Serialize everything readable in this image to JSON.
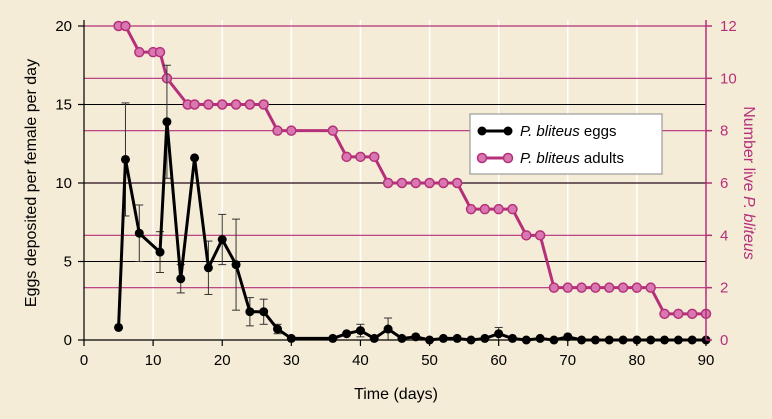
{
  "colors": {
    "background": "#f5ecd7",
    "eggs": "#000000",
    "adults": "#b5307a",
    "adults_marker": "#d877b0",
    "grid_vertical": "#ffffff",
    "grid_horizontal_left": "#000000",
    "grid_horizontal_right": "#b5307a"
  },
  "chart_data": {
    "type": "line",
    "xlabel": "Time (days)",
    "ylabel": "Eggs deposited per female per day",
    "y2label_prefix": "Number live ",
    "y2label_italic": "P. bliteus",
    "xlim": [
      0,
      90
    ],
    "ylim": [
      0,
      20
    ],
    "y2lim": [
      0,
      12
    ],
    "x_ticks": [
      0,
      10,
      20,
      30,
      40,
      50,
      60,
      70,
      80,
      90
    ],
    "y_ticks": [
      0,
      5,
      10,
      15,
      20
    ],
    "y2_ticks": [
      0,
      2,
      4,
      6,
      8,
      10,
      12
    ],
    "grid": true,
    "legend_position": "right-center",
    "series": [
      {
        "name_italic": "P. bliteus",
        "name_suffix": " eggs",
        "axis": "left",
        "marker": "circle-filled-black",
        "x": [
          5,
          6,
          8,
          11,
          12,
          14,
          16,
          18,
          20,
          22,
          24,
          26,
          28,
          30,
          36,
          38,
          40,
          42,
          44,
          46,
          48,
          50,
          52,
          54,
          56,
          58,
          60,
          62,
          64,
          66,
          68,
          70,
          72,
          74,
          76,
          78,
          80,
          82,
          84,
          86,
          88,
          90
        ],
        "values": [
          0.8,
          11.5,
          6.8,
          5.6,
          13.9,
          3.9,
          11.6,
          4.6,
          6.4,
          4.8,
          1.8,
          1.8,
          0.7,
          0.1,
          0.1,
          0.4,
          0.6,
          0.1,
          0.7,
          0.1,
          0.2,
          0.0,
          0.1,
          0.1,
          0.0,
          0.1,
          0.4,
          0.1,
          0.0,
          0.1,
          0.0,
          0.2,
          0.0,
          0.0,
          0.0,
          0.0,
          0.0,
          0.0,
          0.0,
          0.0,
          0.0,
          0.0
        ],
        "error": [
          0,
          3.6,
          1.8,
          1.3,
          3.6,
          0.9,
          0,
          1.7,
          1.6,
          2.9,
          0.9,
          0.8,
          0.3,
          0,
          0,
          0,
          0.4,
          0,
          0.7,
          0,
          0,
          0,
          0,
          0,
          0,
          0,
          0.4,
          0,
          0,
          0,
          0,
          0,
          0,
          0,
          0,
          0,
          0,
          0,
          0,
          0,
          0,
          0
        ]
      },
      {
        "name_italic": "P. bliteus",
        "name_suffix": " adults",
        "axis": "right",
        "marker": "circle-filled-pink",
        "x": [
          5,
          6,
          8,
          10,
          11,
          12,
          15,
          16,
          18,
          20,
          22,
          24,
          26,
          28,
          30,
          36,
          38,
          40,
          42,
          44,
          46,
          48,
          50,
          52,
          54,
          56,
          58,
          60,
          62,
          64,
          66,
          68,
          70,
          72,
          74,
          76,
          78,
          80,
          82,
          84,
          86,
          88,
          90
        ],
        "values": [
          12,
          12,
          11,
          11,
          11,
          10,
          9,
          9,
          9,
          9,
          9,
          9,
          9,
          8,
          8,
          8,
          7,
          7,
          7,
          6,
          6,
          6,
          6,
          6,
          6,
          5,
          5,
          5,
          5,
          4,
          4,
          2,
          2,
          2,
          2,
          2,
          2,
          2,
          2,
          1,
          1,
          1,
          1
        ]
      }
    ]
  }
}
